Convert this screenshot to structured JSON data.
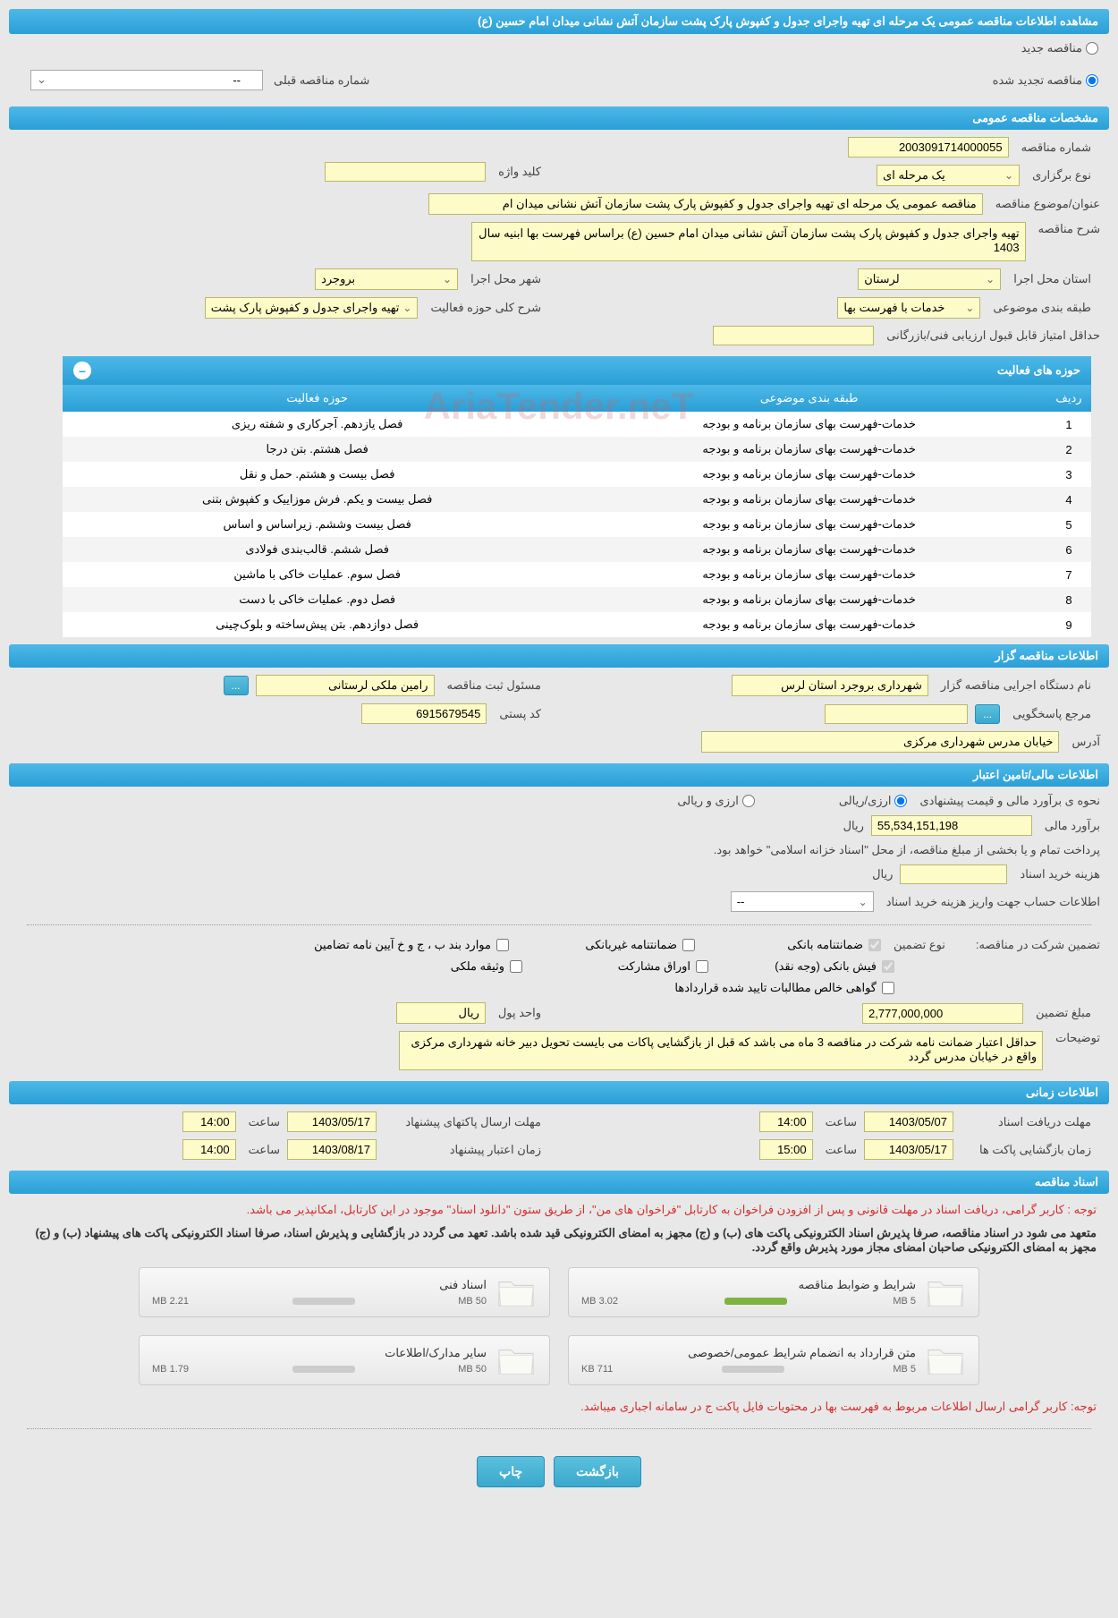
{
  "header": {
    "title": "مشاهده اطلاعات مناقصه عمومی یک مرحله ای تهیه واجرای جدول و کفپوش پارک پشت سازمان آتش نشانی میدان امام حسین (ع)"
  },
  "tender_type": {
    "new_label": "مناقصه جدید",
    "renewed_label": "مناقصه تجدید شده",
    "prev_label": "شماره مناقصه قبلی",
    "prev_value": "--"
  },
  "sections": {
    "general": "مشخصات مناقصه عمومی",
    "organizer": "اطلاعات مناقصه گزار",
    "financial": "اطلاعات مالی/تامین اعتبار",
    "timing": "اطلاعات زمانی",
    "documents": "اسناد مناقصه"
  },
  "general": {
    "number_label": "شماره مناقصه",
    "number": "2003091714000055",
    "type_label": "نوع برگزاری",
    "type": "یک مرحله ای",
    "keyword_label": "کلید واژه",
    "keyword": "",
    "subject_label": "عنوان/موضوع مناقصه",
    "subject": "مناقصه عمومی یک مرحله ای تهیه واجرای جدول و کفپوش  پارک پشت سازمان آتش نشانی میدان ام",
    "description_label": "شرح مناقصه",
    "description": "تهیه واجرای جدول و کفپوش پارک پشت سازمان آتش نشانی میدان امام حسین (ع) براساس فهرست بها ابنیه سال 1403",
    "province_label": "استان محل اجرا",
    "province": "لرستان",
    "city_label": "شهر محل اجرا",
    "city": "بروجرد",
    "category_label": "طبقه بندی موضوعی",
    "category": "خدمات با فهرست بها",
    "activity_scope_label": "شرح کلی حوزه فعالیت",
    "activity_scope": "تهیه واجرای جدول و کفپوش پارک پشت",
    "min_score_label": "حداقل امتیاز قابل قبول ارزیابی فنی/بازرگانی",
    "min_score": ""
  },
  "activity_table": {
    "title": "حوزه های فعالیت",
    "headers": {
      "row": "ردیف",
      "category": "طبقه بندی موضوعی",
      "scope": "حوزه فعالیت"
    },
    "rows": [
      {
        "n": "1",
        "cat": "خدمات-فهرست بهای سازمان برنامه و بودجه",
        "scope": "فصل یازدهم. آجرکاری و شفته ریزی"
      },
      {
        "n": "2",
        "cat": "خدمات-فهرست بهای سازمان برنامه و بودجه",
        "scope": "فصل هشتم. بتن درجا"
      },
      {
        "n": "3",
        "cat": "خدمات-فهرست بهای سازمان برنامه و بودجه",
        "scope": "فصل بیست و هشتم. حمل و نقل"
      },
      {
        "n": "4",
        "cat": "خدمات-فهرست بهای سازمان برنامه و بودجه",
        "scope": "فصل بیست و یکم. فرش موزاییک و کفپوش بتنی"
      },
      {
        "n": "5",
        "cat": "خدمات-فهرست بهای سازمان برنامه و بودجه",
        "scope": "فصل بیست وششم. زیراساس و اساس"
      },
      {
        "n": "6",
        "cat": "خدمات-فهرست بهای سازمان برنامه و بودجه",
        "scope": "فصل ششم. قالب‌بندی فولادی"
      },
      {
        "n": "7",
        "cat": "خدمات-فهرست بهای سازمان برنامه و بودجه",
        "scope": "فصل سوم. عملیات خاکی با ماشین"
      },
      {
        "n": "8",
        "cat": "خدمات-فهرست بهای سازمان برنامه و بودجه",
        "scope": "فصل دوم. عملیات خاکی با دست"
      },
      {
        "n": "9",
        "cat": "خدمات-فهرست بهای سازمان برنامه و بودجه",
        "scope": "فصل دوازدهم. بتن پیش‌ساخته و بلوک‌چینی"
      }
    ]
  },
  "organizer": {
    "executive_label": "نام دستگاه اجرایی مناقصه گزار",
    "executive": "شهرداری بروجرد استان لرس",
    "manager_label": "مسئول ثبت مناقصه",
    "manager": "رامین ملکی لرستانی",
    "response_label": "مرجع پاسخگویی",
    "response": "",
    "postal_label": "کد پستی",
    "postal": "6915679545",
    "address_label": "آدرس",
    "address": "خیابان مدرس شهرداری مرکزی"
  },
  "financial": {
    "estimate_label": "نحوه ی برآورد مالی و قیمت پیشنهادی",
    "rial_option": "ارزی/ریالی",
    "both_option": "ارزی و ریالی",
    "estimate_amount_label": "برآورد مالی",
    "estimate_amount": "55,534,151,198",
    "currency": "ریال",
    "payment_note": "پرداخت تمام و یا بخشی از مبلغ مناقصه، از محل \"اسناد خزانه اسلامی\" خواهد بود.",
    "doc_cost_label": "هزینه خرید اسناد",
    "doc_cost": "",
    "doc_cost_unit": "ریال",
    "deposit_info_label": "اطلاعات حساب جهت واریز هزینه خرید اسناد",
    "deposit_info": "--",
    "guarantee_section_label": "تضمین شرکت در مناقصه:",
    "guarantee_type_label": "نوع تضمین",
    "guarantee_options": {
      "bank": "ضمانتنامه بانکی",
      "nonbank": "ضمانتنامه غیربانکی",
      "items_b": "موارد بند ب ، ج و خ آیین نامه تضامین",
      "cash": "فیش بانکی (وجه نقد)",
      "bonds": "اوراق مشارکت",
      "property": "وثیقه ملکی",
      "certificate": "گواهی خالص مطالبات تایید شده قراردادها"
    },
    "guarantee_amount_label": "مبلغ تضمین",
    "guarantee_amount": "2,777,000,000",
    "guarantee_unit_label": "واحد پول",
    "guarantee_unit": "ریال",
    "notes_label": "توضیحات",
    "notes": "حداقل اعتبار ضمانت نامه شرکت در مناقصه 3 ماه می باشد که قبل از بازگشایی پاکات می بایست تحویل دبیر خانه شهرداری مرکزی واقع در خیابان مدرس گردد"
  },
  "timing": {
    "receive_deadline_label": "مهلت دریافت اسناد",
    "receive_date": "1403/05/07",
    "receive_time_label": "ساعت",
    "receive_time": "14:00",
    "send_deadline_label": "مهلت ارسال پاکتهای پیشنهاد",
    "send_date": "1403/05/17",
    "send_time_label": "ساعت",
    "send_time": "14:00",
    "open_label": "زمان بازگشایی پاکت ها",
    "open_date": "1403/05/17",
    "open_time_label": "ساعت",
    "open_time": "15:00",
    "validity_label": "زمان اعتبار پیشنهاد",
    "validity_date": "1403/08/17",
    "validity_time_label": "ساعت",
    "validity_time": "14:00"
  },
  "documents": {
    "warning1": "توجه : کاربر گرامی، دریافت اسناد در مهلت قانونی و پس از افزودن فراخوان به کارتابل \"فراخوان های من\"، از طریق ستون \"دانلود اسناد\" موجود در این کارتابل، امکانپذیر می باشد.",
    "note1": "متعهد می شود در اسناد مناقصه، صرفا پذیرش اسناد الکترونیکی پاکت های (ب) و (ج) مجهز به امضای الکترونیکی قید شده باشد. تعهد می گردد در بازگشایی و پذیرش اسناد، صرفا اسناد الکترونیکی پاکت های پیشنهاد (ب) و (ج) مجهز به امضای الکترونیکی صاحبان امضای مجاز مورد پذیرش واقع گردد.",
    "files": [
      {
        "title": "شرایط و ضوابط مناقصه",
        "used": "3.02 MB",
        "total": "5 MB",
        "progress": "green"
      },
      {
        "title": "اسناد فنی",
        "used": "2.21 MB",
        "total": "50 MB",
        "progress": "gray"
      },
      {
        "title": "متن قرارداد به انضمام شرایط عمومی/خصوصی",
        "used": "711 KB",
        "total": "5 MB",
        "progress": "gray"
      },
      {
        "title": "سایر مدارک/اطلاعات",
        "used": "1.79 MB",
        "total": "50 MB",
        "progress": "gray"
      }
    ],
    "warning2": "توجه: کاربر گرامی ارسال اطلاعات مربوط به فهرست بها در محتویات فایل پاکت ج در سامانه اجباری میباشد."
  },
  "buttons": {
    "back": "بازگشت",
    "print": "چاپ"
  },
  "colors": {
    "header_bg": "#3aa8cc",
    "field_bg": "#fdfbc7",
    "warning": "#d32f2f"
  }
}
